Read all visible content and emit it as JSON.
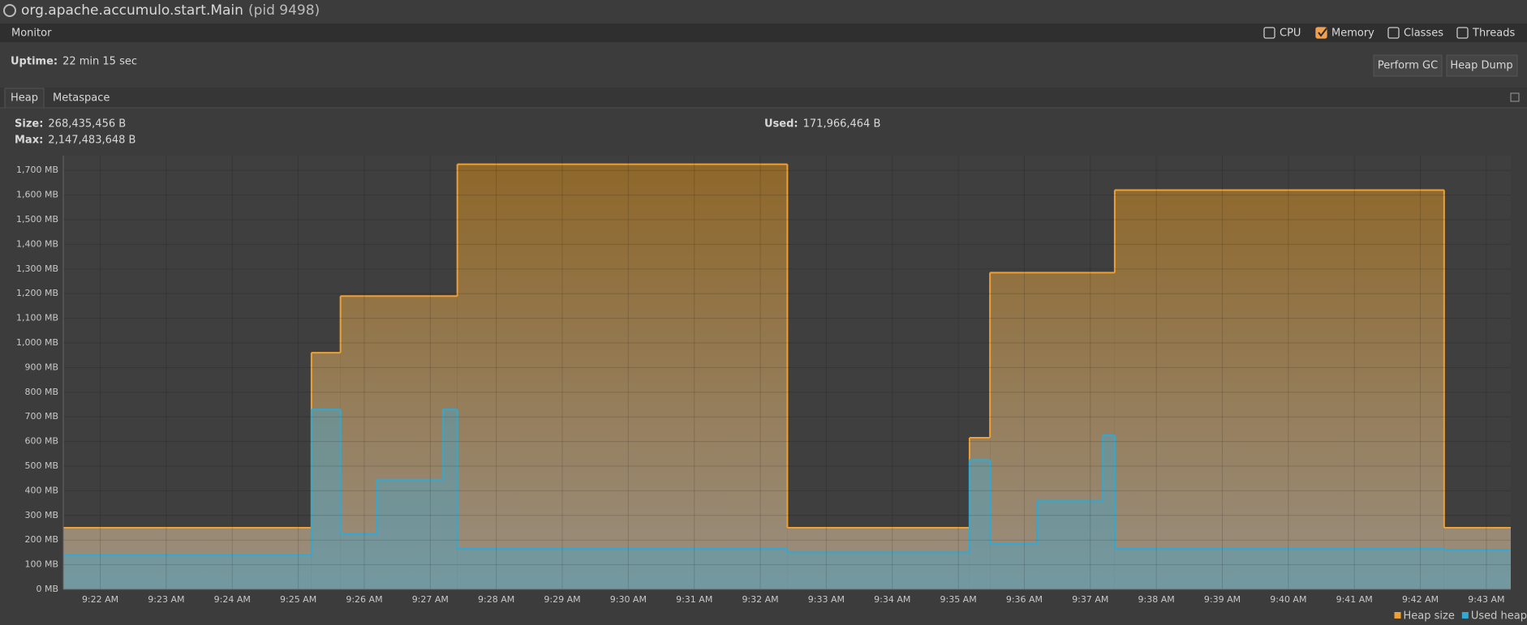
{
  "window": {
    "title": "org.apache.accumulo.start.Main",
    "pid": "(pid 9498)"
  },
  "monitor": {
    "label": "Monitor",
    "checkboxes": [
      {
        "label": "CPU",
        "checked": false
      },
      {
        "label": "Memory",
        "checked": true
      },
      {
        "label": "Classes",
        "checked": false
      },
      {
        "label": "Threads",
        "checked": false
      }
    ]
  },
  "uptime": {
    "label": "Uptime:",
    "value": "22 min 15 sec"
  },
  "buttons": [
    "Perform GC",
    "Heap Dump"
  ],
  "tabs": [
    "Heap",
    "Metaspace"
  ],
  "stats": [
    {
      "label": "Size:",
      "value": "268,435,456 B"
    },
    {
      "label": "Max:",
      "value": "2,147,483,648 B"
    },
    {
      "label": "Used:",
      "value": "171,966,464 B"
    }
  ],
  "chart_data": {
    "type": "step-area",
    "series": [
      {
        "name": "Heap size",
        "color": "#f0a030",
        "x": [
          21.44,
          25.2,
          25.64,
          27.41,
          32.41,
          35.17,
          35.48,
          37.37,
          42.36
        ],
        "values": [
          250,
          960,
          1190,
          1725,
          250,
          615,
          1285,
          1620,
          250
        ]
      },
      {
        "name": "Used heap",
        "color": "#33a8d0",
        "x": [
          21.44,
          25.2,
          25.64,
          26.19,
          27.19,
          27.41,
          32.41,
          35.17,
          35.48,
          36.19,
          37.19,
          37.37,
          42.36
        ],
        "values": [
          140,
          730,
          225,
          445,
          730,
          165,
          150,
          525,
          185,
          360,
          625,
          165,
          160
        ]
      }
    ],
    "xlim": [
      21.44,
      43.37
    ],
    "xticks": [
      {
        "value": 22,
        "label": "9:22 AM"
      },
      {
        "value": 23,
        "label": "9:23 AM"
      },
      {
        "value": 24,
        "label": "9:24 AM"
      },
      {
        "value": 25,
        "label": "9:25 AM"
      },
      {
        "value": 26,
        "label": "9:26 AM"
      },
      {
        "value": 27,
        "label": "9:27 AM"
      },
      {
        "value": 28,
        "label": "9:28 AM"
      },
      {
        "value": 29,
        "label": "9:29 AM"
      },
      {
        "value": 30,
        "label": "9:30 AM"
      },
      {
        "value": 31,
        "label": "9:31 AM"
      },
      {
        "value": 32,
        "label": "9:32 AM"
      },
      {
        "value": 33,
        "label": "9:33 AM"
      },
      {
        "value": 34,
        "label": "9:34 AM"
      },
      {
        "value": 35,
        "label": "9:35 AM"
      },
      {
        "value": 36,
        "label": "9:36 AM"
      },
      {
        "value": 37,
        "label": "9:37 AM"
      },
      {
        "value": 38,
        "label": "9:38 AM"
      },
      {
        "value": 39,
        "label": "9:39 AM"
      },
      {
        "value": 40,
        "label": "9:40 AM"
      },
      {
        "value": 41,
        "label": "9:41 AM"
      },
      {
        "value": 42,
        "label": "9:42 AM"
      },
      {
        "value": 43,
        "label": "9:43 AM"
      }
    ],
    "ylim": [
      0,
      1760
    ],
    "yticks": [
      {
        "value": 0,
        "label": "0 MB"
      },
      {
        "value": 100,
        "label": "100 MB"
      },
      {
        "value": 200,
        "label": "200 MB"
      },
      {
        "value": 300,
        "label": "300 MB"
      },
      {
        "value": 400,
        "label": "400 MB"
      },
      {
        "value": 500,
        "label": "500 MB"
      },
      {
        "value": 600,
        "label": "600 MB"
      },
      {
        "value": 700,
        "label": "700 MB"
      },
      {
        "value": 800,
        "label": "800 MB"
      },
      {
        "value": 900,
        "label": "900 MB"
      },
      {
        "value": 1000,
        "label": "1,000 MB"
      },
      {
        "value": 1100,
        "label": "1,100 MB"
      },
      {
        "value": 1200,
        "label": "1,200 MB"
      },
      {
        "value": 1300,
        "label": "1,300 MB"
      },
      {
        "value": 1400,
        "label": "1,400 MB"
      },
      {
        "value": 1500,
        "label": "1,500 MB"
      },
      {
        "value": 1600,
        "label": "1,600 MB"
      },
      {
        "value": 1700,
        "label": "1,700 MB"
      }
    ],
    "grid": true,
    "legend": "bottom-right"
  }
}
